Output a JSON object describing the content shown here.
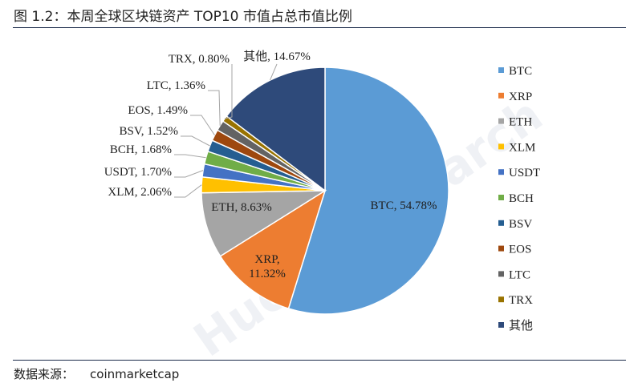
{
  "figure": {
    "title": "图 1.2：本周全球区块链资产 TOP10 市值占总市值比例",
    "source_label": "数据来源：",
    "source_value": "coinmarketcap",
    "watermark": "Huobi Research"
  },
  "chart_data": {
    "type": "pie",
    "title": "",
    "unit": "%",
    "slices": [
      {
        "name": "BTC",
        "value": 54.78,
        "label": "BTC, 54.78%",
        "color": "#5b9bd5"
      },
      {
        "name": "XRP",
        "value": 11.32,
        "label": "XRP, 11.32%",
        "color": "#ed7d31"
      },
      {
        "name": "ETH",
        "value": 8.63,
        "label": "ETH, 8.63%",
        "color": "#a5a5a5"
      },
      {
        "name": "XLM",
        "value": 2.06,
        "label": "XLM, 2.06%",
        "color": "#ffc000"
      },
      {
        "name": "USDT",
        "value": 1.7,
        "label": "USDT, 1.70%",
        "color": "#4472c4"
      },
      {
        "name": "BCH",
        "value": 1.68,
        "label": "BCH, 1.68%",
        "color": "#70ad47"
      },
      {
        "name": "BSV",
        "value": 1.52,
        "label": "BSV, 1.52%",
        "color": "#255e91"
      },
      {
        "name": "EOS",
        "value": 1.49,
        "label": "EOS, 1.49%",
        "color": "#9e480e"
      },
      {
        "name": "LTC",
        "value": 1.36,
        "label": "LTC, 1.36%",
        "color": "#636363"
      },
      {
        "name": "TRX",
        "value": 0.8,
        "label": "TRX, 0.80%",
        "color": "#997300"
      },
      {
        "name": "其他",
        "value": 14.67,
        "label": "其他, 14.67%",
        "color": "#2e4a7a"
      }
    ],
    "start": "12 o'clock",
    "direction": "clockwise",
    "legend_position": "right"
  }
}
